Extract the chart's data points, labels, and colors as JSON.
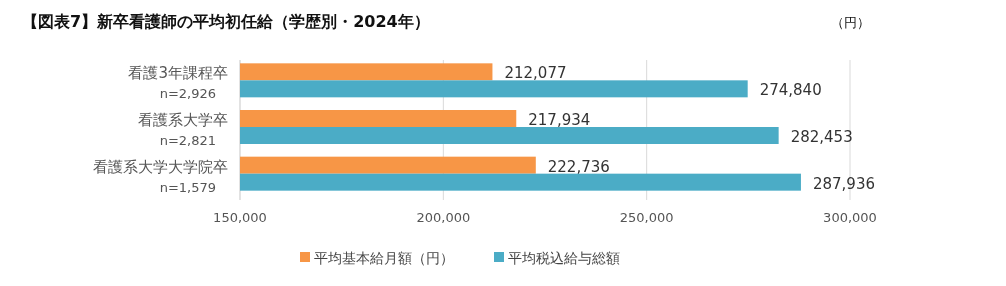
{
  "chart_data": {
    "type": "bar",
    "orientation": "horizontal",
    "title": "【図表7】新卒看護師の平均初任給（学歴別・2024年）",
    "annotations": [
      "（円）"
    ],
    "categories": [
      "看護3年課程卒\nn=2,926",
      "看護系大学卒\nn=2,821",
      "看護系大学大学院卒\nn=1,579"
    ],
    "series": [
      {
        "name": "平均基本給月額（円）",
        "color": "#f79646",
        "values": [
          212077,
          217934,
          222736
        ],
        "value_labels": [
          "212,077",
          "217,934",
          "222,736"
        ]
      },
      {
        "name": "平均税込給与総額",
        "color": "#4bacc6",
        "values": [
          274840,
          282453,
          287936
        ],
        "value_labels": [
          "274,840",
          "282,453",
          "287,936"
        ]
      }
    ],
    "xlim": [
      150000,
      300000
    ],
    "xticks": [
      {
        "value": 150000,
        "label": "150,000"
      },
      {
        "value": 200000,
        "label": "200,000"
      },
      {
        "value": 250000,
        "label": "250,000"
      },
      {
        "value": 300000,
        "label": "300,000"
      }
    ],
    "grid": "x",
    "legend": "bottom"
  }
}
